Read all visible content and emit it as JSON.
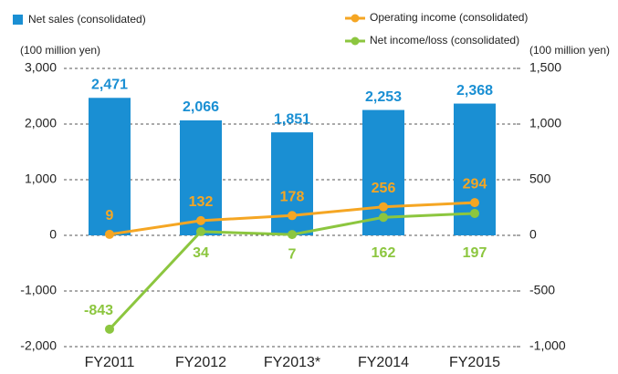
{
  "chart_data": {
    "type": "bar",
    "categories": [
      "FY2011",
      "FY2012",
      "FY2013*",
      "FY2014",
      "FY2015"
    ],
    "y_axis_label": "(100 million yen)",
    "y2_axis_label": "(100 million yen)",
    "ylim": [
      -2000,
      3000
    ],
    "yticks": [
      {
        "value": 3000,
        "label": "3,000"
      },
      {
        "value": 2000,
        "label": "2,000"
      },
      {
        "value": 1000,
        "label": "1,000"
      },
      0,
      {
        "value": -1000,
        "label": "-1,000"
      },
      {
        "value": -2000,
        "label": "-2,000"
      }
    ],
    "y2lim": [
      -1000,
      1500
    ],
    "y2ticks": [
      {
        "value": 1500,
        "label": "1,500"
      },
      {
        "value": 1000,
        "label": "1,000"
      },
      500,
      0,
      -500,
      {
        "value": -1000,
        "label": "-1,000"
      }
    ],
    "grid": true,
    "series": [
      {
        "name": "Net sales (consolidated)",
        "type": "bar",
        "color": "#1a8fd3",
        "values": [
          2471,
          2066,
          1851,
          2253,
          2368
        ],
        "value_labels": [
          "2,471",
          "2,066",
          "1,851",
          "2,253",
          "2,368"
        ]
      },
      {
        "name": "Operating income (consolidated)",
        "type": "line",
        "axis": "y2",
        "color": "#f5a623",
        "values": [
          9,
          132,
          178,
          256,
          294
        ]
      },
      {
        "name": "Net income/loss (consolidated)",
        "type": "line",
        "axis": "y2",
        "color": "#8cc63f",
        "values": [
          -843,
          34,
          7,
          162,
          197
        ]
      }
    ]
  }
}
